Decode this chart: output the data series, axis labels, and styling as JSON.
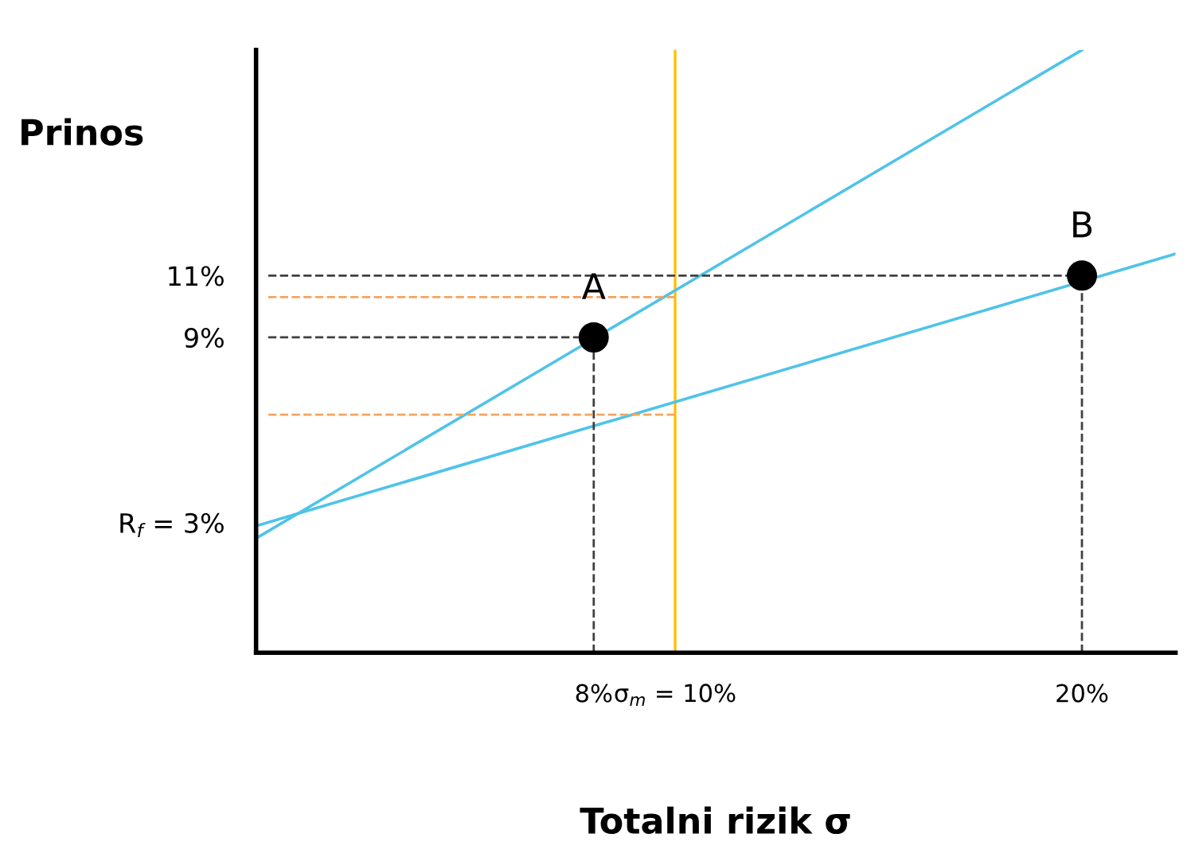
{
  "chart_data": {
    "type": "line",
    "xlabel": "Totalni rizik σ",
    "ylabel": "Prinos",
    "xlim": [
      -0.3,
      22.3
    ],
    "ylim": [
      -1.2,
      18.3
    ],
    "xticks": [
      {
        "value": 8,
        "label": "8%"
      },
      {
        "value": 10,
        "label": "σ$_{m}$ = 10%"
      },
      {
        "value": 20,
        "label": "20%"
      }
    ],
    "yticks": [
      {
        "value": 3,
        "label": "R$_{f}$ = 3%"
      },
      {
        "value": 9,
        "label": "9%"
      },
      {
        "value": 11,
        "label": "11%"
      }
    ],
    "grid": false,
    "legend": false,
    "ref_lines": [
      {
        "axis": "x",
        "value": 10,
        "color": "#ffc000"
      }
    ],
    "annotations": [
      {
        "text": "A",
        "x": 8,
        "y": 9
      },
      {
        "text": "B",
        "x": 20,
        "y": 11
      }
    ],
    "series": [
      {
        "color": "#4fc3e8",
        "x": [
          -0.3,
          20
        ],
        "values": [
          2.5,
          18.3
        ]
      },
      {
        "color": "#4fc3e8",
        "x": [
          -0.3,
          22.3
        ],
        "values": [
          2.9,
          11.7
        ]
      },
      {
        "type": "line",
        "color": "#404040",
        "line_style": "dashed",
        "x": [
          0,
          8
        ],
        "values": [
          9,
          9
        ]
      },
      {
        "type": "line",
        "color": "#404040",
        "line_style": "dashed",
        "x": [
          8,
          8
        ],
        "values": [
          -1.2,
          9
        ]
      },
      {
        "type": "line",
        "color": "#404040",
        "line_style": "dashed",
        "x": [
          0,
          20
        ],
        "values": [
          11,
          11
        ]
      },
      {
        "type": "line",
        "color": "#404040",
        "line_style": "dashed",
        "x": [
          20,
          20
        ],
        "values": [
          -1.2,
          11
        ]
      },
      {
        "type": "line",
        "color": "#f4a460",
        "line_style": "dashed",
        "x": [
          0,
          10
        ],
        "values": [
          10.3,
          10.3
        ]
      },
      {
        "type": "line",
        "color": "#f4a460",
        "line_style": "dashed",
        "x": [
          0,
          10
        ],
        "values": [
          6.5,
          6.5
        ]
      },
      {
        "type": "scatter",
        "color": "#000000",
        "marker": "circle",
        "x": [
          8,
          20
        ],
        "values": [
          9,
          11
        ]
      }
    ]
  }
}
